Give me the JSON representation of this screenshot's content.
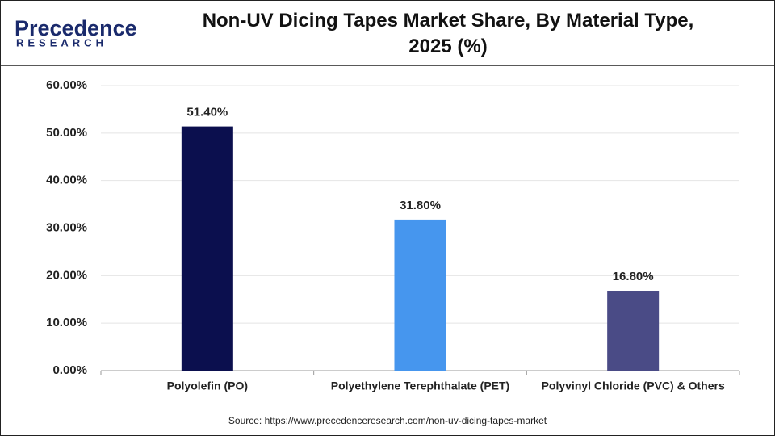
{
  "logo": {
    "name": "Precedence",
    "tagline": "RESEARCH"
  },
  "chart_data": {
    "type": "bar",
    "title": "Non-UV Dicing Tapes Market Share, By Material Type, 2025 (%)",
    "categories": [
      "Polyolefin (PO)",
      "Polyethylene Terephthalate (PET)",
      "Polyvinyl Chloride (PVC) & Others"
    ],
    "values": [
      51.4,
      31.8,
      16.8
    ],
    "value_labels": [
      "51.40%",
      "31.80%",
      "16.80%"
    ],
    "colors": [
      "#0b0f4e",
      "#4696ee",
      "#4a4b86"
    ],
    "ylim": [
      0,
      60
    ],
    "yticks": [
      {
        "value": 0,
        "label": "0.00%"
      },
      {
        "value": 10,
        "label": "10.00%"
      },
      {
        "value": 20,
        "label": "20.00%"
      },
      {
        "value": 30,
        "label": "30.00%"
      },
      {
        "value": 40,
        "label": "40.00%"
      },
      {
        "value": 50,
        "label": "50.00%"
      },
      {
        "value": 60,
        "label": "60.00%"
      }
    ],
    "grid": true,
    "source": "Source: https://www.precedenceresearch.com/non-uv-dicing-tapes-market"
  }
}
